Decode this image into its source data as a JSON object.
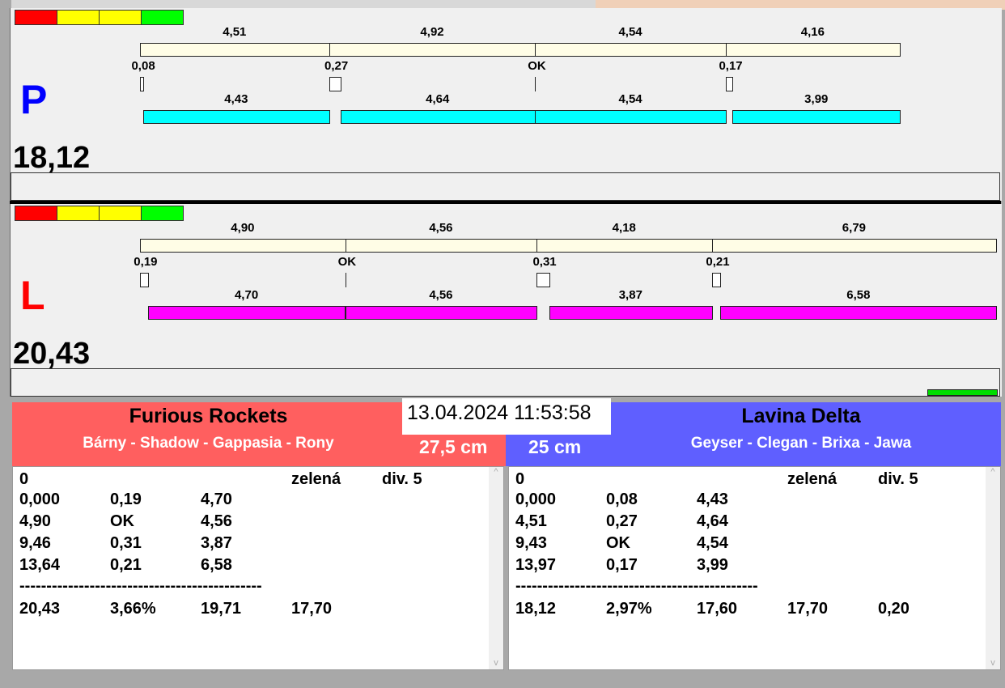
{
  "lights": [
    "#ff0000",
    "#ffff00",
    "#ffff00",
    "#00ff00"
  ],
  "lanes": [
    {
      "letter": "P",
      "letter_color": "#0000ff",
      "total": "18,12",
      "bar_color": "#fffde6",
      "bottom_color": "#00ffff",
      "top": [
        "4,51",
        "4,92",
        "4,54",
        "4,16"
      ],
      "gaps": [
        "0,08",
        "0,27",
        "OK",
        "0,17"
      ],
      "bottom": [
        "4,43",
        "4,64",
        "4,54",
        "3,99"
      ]
    },
    {
      "letter": "L",
      "letter_color": "#ff0000",
      "total": "20,43",
      "bar_color": "#fffde6",
      "bottom_color": "#ff00ff",
      "top": [
        "4,90",
        "4,56",
        "4,18",
        "6,79"
      ],
      "gaps": [
        "0,19",
        "OK",
        "0,31",
        "0,21"
      ],
      "bottom": [
        "4,70",
        "4,56",
        "3,87",
        "6,58"
      ],
      "progress_color": "#00dd00"
    }
  ],
  "datetime": "13.04.2024 11:53:58",
  "teams": [
    {
      "name": "Furious Rockets",
      "members": "Bárny - Shadow - Gappasia - Rony",
      "size": "27,5 cm",
      "color": "#ff5f5f",
      "rows": [
        [
          "0",
          "",
          "",
          "zelená",
          "div. 5"
        ],
        [
          "0,000",
          "0,19",
          "4,70",
          "",
          ""
        ],
        [
          "4,90",
          "OK",
          "4,56",
          "",
          ""
        ],
        [
          "9,46",
          "0,31",
          "3,87",
          "",
          ""
        ],
        [
          "13,64",
          "0,21",
          "6,58",
          "",
          ""
        ],
        [
          "---------------------------------------------",
          "",
          "",
          "",
          ""
        ],
        [
          "20,43",
          "3,66%",
          "19,71",
          "17,70",
          ""
        ]
      ]
    },
    {
      "name": "Lavina Delta",
      "members": "Geyser - Clegan - Brixa - Jawa",
      "size": "25 cm",
      "color": "#5f5fff",
      "rows": [
        [
          "0",
          "",
          "",
          "zelená",
          "div. 5"
        ],
        [
          "0,000",
          "0,08",
          "4,43",
          "",
          ""
        ],
        [
          "4,51",
          "0,27",
          "4,64",
          "",
          ""
        ],
        [
          "9,43",
          "OK",
          "4,54",
          "",
          ""
        ],
        [
          "13,97",
          "0,17",
          "3,99",
          "",
          ""
        ],
        [
          "---------------------------------------------",
          "",
          "",
          "",
          ""
        ],
        [
          "18,12",
          "2,97%",
          "17,60",
          "17,70",
          "0,20"
        ]
      ]
    }
  ]
}
